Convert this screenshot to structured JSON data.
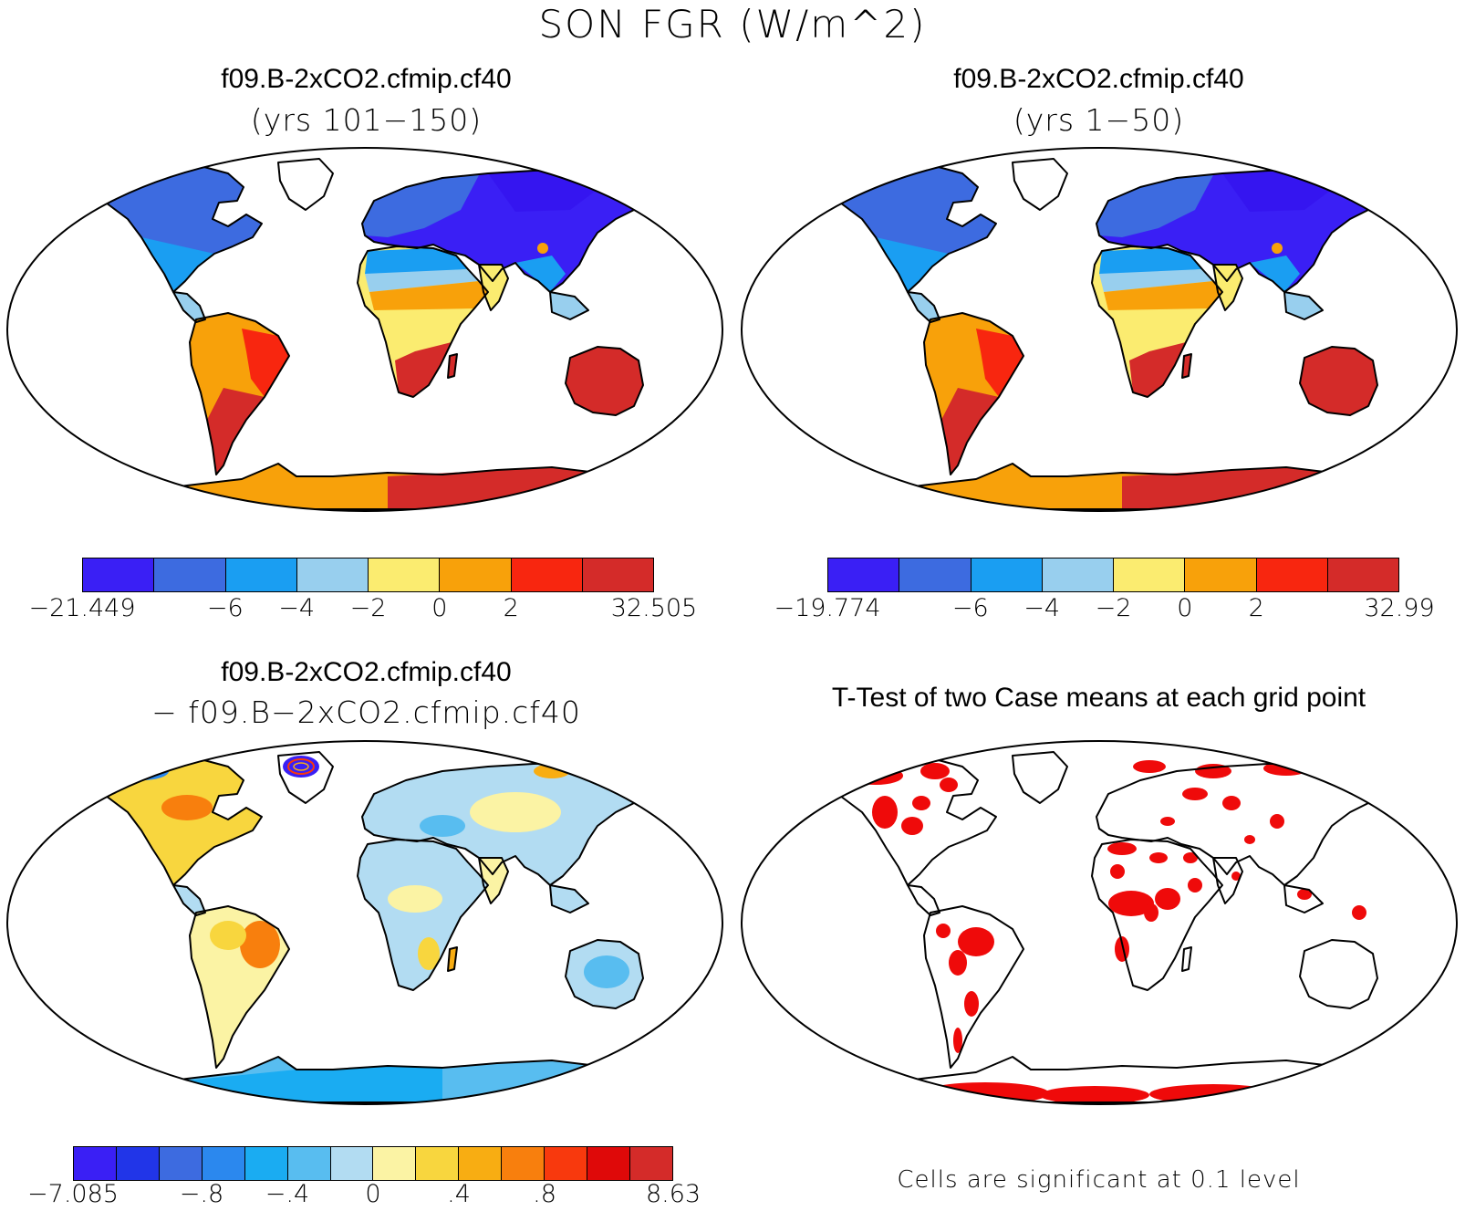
{
  "title": "SON FGR (W/m^2)",
  "panels": [
    {
      "title": "f09.B-2xCO2.cfmip.cf40",
      "subtitle": "(yrs 101−150)",
      "colorbar": {
        "colors": [
          "#3a1ff5",
          "#3d6be0",
          "#1a9ef2",
          "#98cfee",
          "#fbec70",
          "#f8a10a",
          "#f8260f",
          "#d42b29"
        ],
        "labels": [
          "−21.449",
          "−6",
          "−4",
          "−2",
          "0",
          "2",
          "32.505"
        ]
      },
      "map_style": "abs_fgr_a"
    },
    {
      "title": "f09.B-2xCO2.cfmip.cf40",
      "subtitle": "(yrs 1−50)",
      "colorbar": {
        "colors": [
          "#3a1ff5",
          "#3d6be0",
          "#1a9ef2",
          "#98cfee",
          "#fbec70",
          "#f8a10a",
          "#f8260f",
          "#d42b29"
        ],
        "labels": [
          "−19.774",
          "−6",
          "−4",
          "−2",
          "0",
          "2",
          "32.99"
        ]
      },
      "map_style": "abs_fgr_b"
    },
    {
      "title": "f09.B-2xCO2.cfmip.cf40",
      "subtitle": "− f09.B−2xCO2.cfmip.cf40",
      "colorbar": {
        "colors": [
          "#3a1ff5",
          "#2135e8",
          "#3d6be0",
          "#2b88ee",
          "#1aacf2",
          "#58bdf0",
          "#b2dcf2",
          "#fbf3a4",
          "#f8d63e",
          "#f8ad12",
          "#f87f0d",
          "#f8390d",
          "#df0909",
          "#d42b29"
        ],
        "labels": [
          "−7.085",
          "−.8",
          "−.4",
          "0",
          ".4",
          ".8",
          "8.63"
        ]
      },
      "map_style": "difference"
    },
    {
      "title": "T-Test of two Case means at each grid point",
      "note": "Cells are significant at 0.1 level",
      "sig_color": "#ef0a0a",
      "map_style": "significance"
    }
  ]
}
